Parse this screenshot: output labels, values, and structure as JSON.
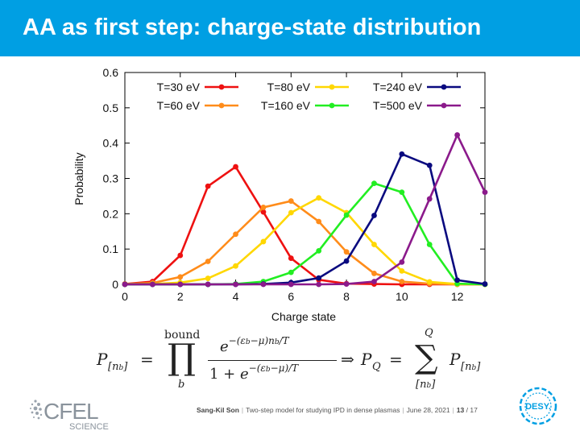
{
  "slide": {
    "title": "AA as first step: charge-state distribution"
  },
  "chart_data": {
    "type": "line",
    "xlabel": "Charge state",
    "ylabel": "Probability",
    "xlim": [
      0,
      13
    ],
    "ylim": [
      0,
      0.6
    ],
    "xticks": [
      0,
      2,
      4,
      6,
      8,
      10,
      12
    ],
    "yticks": [
      0,
      0.1,
      0.2,
      0.3,
      0.4,
      0.5,
      0.6
    ],
    "ytick_labels": [
      "0",
      "0.1",
      "0.2",
      "0.3",
      "0.4",
      "0.5",
      "0.6"
    ],
    "legend_position": "top",
    "x": [
      0,
      1,
      2,
      3,
      4,
      5,
      6,
      7,
      8,
      9,
      10,
      11,
      12,
      13
    ],
    "series": [
      {
        "name": "T=30 eV",
        "color": "#ee1111",
        "values": [
          0.001,
          0.008,
          0.082,
          0.278,
          0.333,
          0.205,
          0.074,
          0.013,
          0.002,
          0.001,
          0.0,
          0.0,
          0.0,
          0.0
        ]
      },
      {
        "name": "T=60 eV",
        "color": "#ff8c1a",
        "values": [
          0.001,
          0.004,
          0.021,
          0.065,
          0.142,
          0.218,
          0.236,
          0.178,
          0.092,
          0.031,
          0.008,
          0.002,
          0.0,
          0.0
        ]
      },
      {
        "name": "T=80 eV",
        "color": "#ffd700",
        "values": [
          0.0,
          0.001,
          0.005,
          0.017,
          0.052,
          0.121,
          0.203,
          0.245,
          0.203,
          0.113,
          0.038,
          0.007,
          0.001,
          0.0
        ]
      },
      {
        "name": "T=160 eV",
        "color": "#22ee22",
        "values": [
          0.0,
          0.0,
          0.0,
          0.0,
          0.001,
          0.008,
          0.034,
          0.095,
          0.196,
          0.286,
          0.261,
          0.113,
          0.002,
          0.0
        ]
      },
      {
        "name": "T=240 eV",
        "color": "#0a0a7f",
        "values": [
          0.0,
          0.0,
          0.0,
          0.0,
          0.0,
          0.001,
          0.005,
          0.018,
          0.066,
          0.195,
          0.369,
          0.337,
          0.012,
          0.001
        ]
      },
      {
        "name": "T=500 eV",
        "color": "#8b1a8b",
        "values": [
          0.0,
          0.0,
          0.0,
          0.0,
          0.0,
          0.0,
          0.0,
          0.0,
          0.001,
          0.008,
          0.063,
          0.242,
          0.423,
          0.261
        ]
      }
    ]
  },
  "formula": {
    "lhs": "P",
    "lhs_sub": "[n",
    "lhs_sub_b": "b",
    "lhs_sub_close": "]",
    "equals": "=",
    "prod_top": "bound",
    "prod_symbol": "∏",
    "prod_bottom": "b",
    "num_base": "e",
    "num_exp": "−(ε",
    "num_exp_b": "b",
    "num_exp_rest": "−μ)n",
    "num_exp_b2": "b",
    "num_exp_end": "/T",
    "den_one": "1 + ",
    "den_base": "e",
    "den_exp": "−(ε",
    "den_exp_b": "b",
    "den_exp_rest": "−μ)/T",
    "implies": "⇒",
    "pq": "P",
    "pq_sub": "Q",
    "sum_top": "Q",
    "sum_symbol": "∑",
    "sum_bottom": "[n",
    "sum_bottom_b": "b",
    "sum_bottom_close": "]"
  },
  "footer": {
    "author": "Sang-Kil Son",
    "talk": "Two-step model for studying IPD in dense plasmas",
    "date": "June 28, 2021",
    "page": "13",
    "total": "/ 17",
    "cfel_logo_text": "CFEL",
    "cfel_sub_text": "SCIENCE",
    "desy_logo_text": "DESY."
  }
}
